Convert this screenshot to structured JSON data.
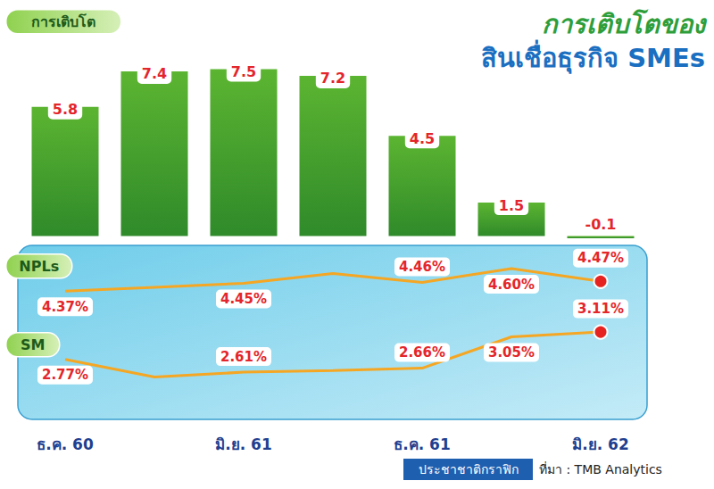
{
  "header": {
    "title": "การเติบโตของ",
    "subtitle": "สินเชื่อธุรกิจ SMEs"
  },
  "footer": {
    "credit": "ประชาชาติกราฟิก",
    "source": "ที่มา : TMB Analytics"
  },
  "chart_data": [
    {
      "type": "bar",
      "title": "การเติบโต",
      "categories": [
        "ธ.ค. 60",
        null,
        "มิ.ย. 61",
        null,
        "ธ.ค. 61",
        null,
        "มิ.ย. 62"
      ],
      "values": [
        5.8,
        7.4,
        7.5,
        7.2,
        4.5,
        1.5,
        -0.1
      ],
      "color": "#5cb531",
      "ylim": [
        -0.5,
        9
      ],
      "grid": false,
      "data_labels": true,
      "tick_labels": false
    },
    {
      "type": "line",
      "title": "NPLs",
      "categories": [
        "ธ.ค. 60",
        null,
        "มิ.ย. 61",
        null,
        "ธ.ค. 61",
        null,
        "มิ.ย. 62"
      ],
      "values": [
        4.37,
        4.41,
        4.45,
        4.55,
        4.46,
        4.6,
        4.47
      ],
      "value_labels": [
        "4.37%",
        null,
        "4.45%",
        null,
        "4.46%",
        "4.60%",
        "4.47%"
      ],
      "color": "#f5a623",
      "ylim": [
        4.2,
        4.7
      ],
      "grid": false,
      "data_labels": true,
      "tick_labels": false
    },
    {
      "type": "line",
      "title": "SM",
      "categories": [
        "ธ.ค. 60",
        null,
        "มิ.ย. 61",
        null,
        "ธ.ค. 61",
        null,
        "มิ.ย. 62"
      ],
      "values": [
        2.77,
        2.55,
        2.61,
        2.63,
        2.66,
        3.05,
        3.11
      ],
      "value_labels": [
        "2.77%",
        null,
        "2.61%",
        null,
        "2.66%",
        "3.05%",
        "3.11%"
      ],
      "color": "#f5a623",
      "ylim": [
        2.3,
        3.3
      ],
      "grid": false,
      "data_labels": true,
      "tick_labels": "x"
    }
  ]
}
